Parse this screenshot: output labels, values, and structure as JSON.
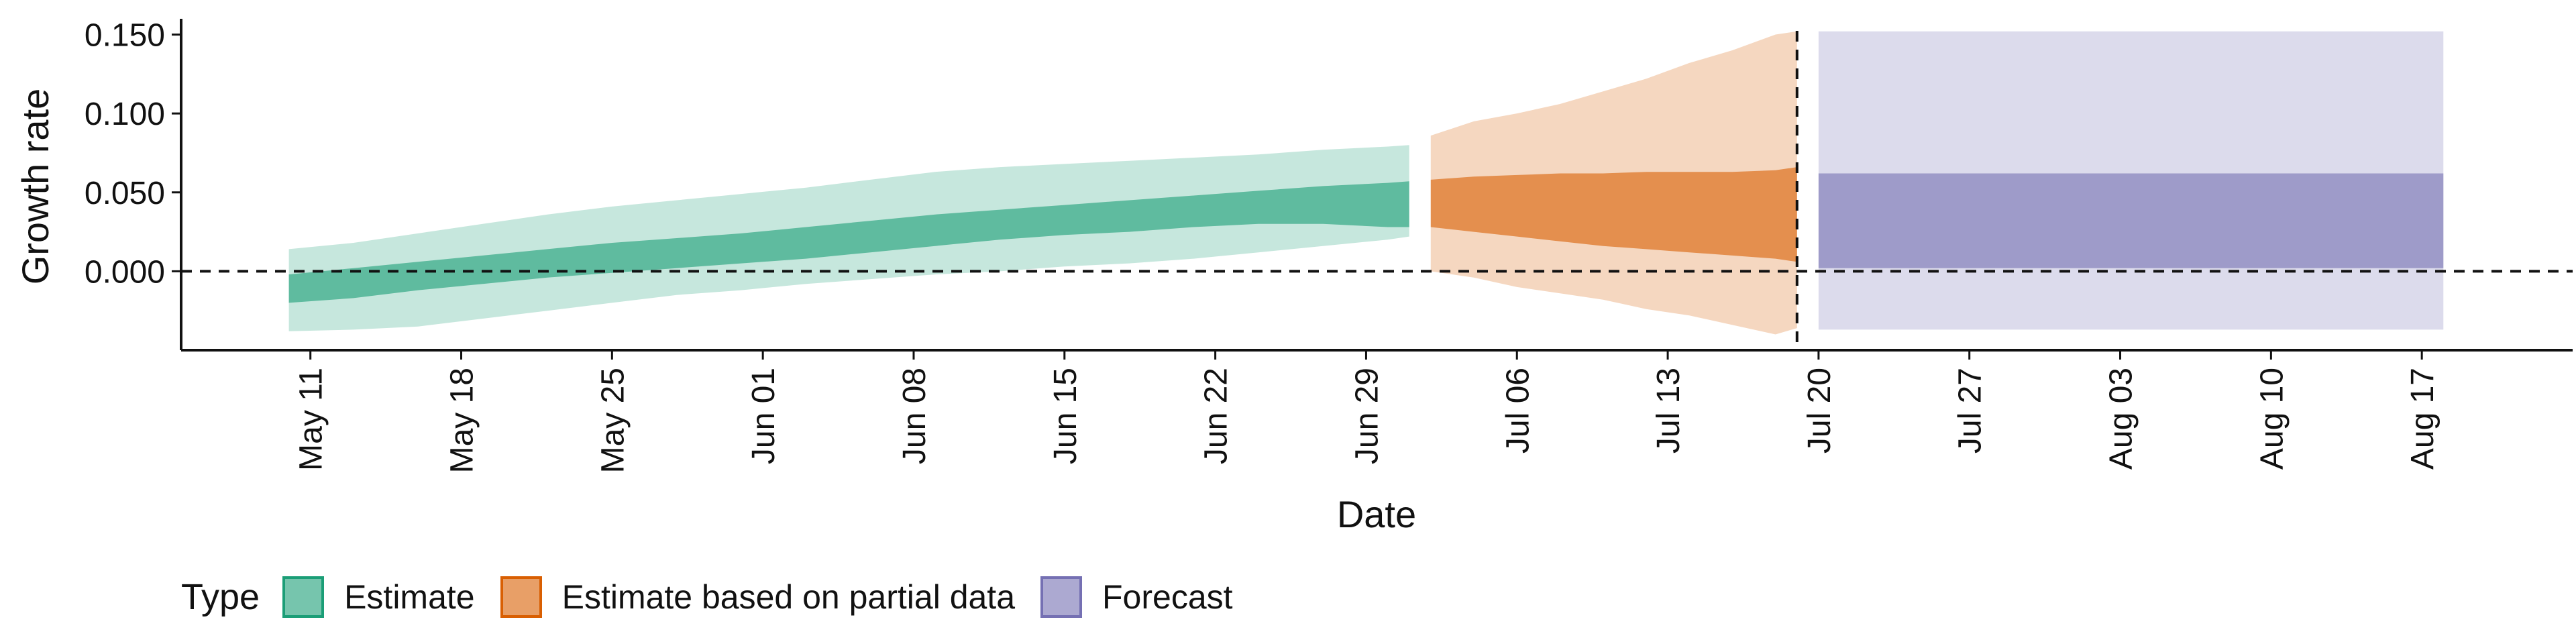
{
  "chart_data": {
    "type": "area",
    "xlabel": "Date",
    "ylabel": "Growth rate",
    "x_ticks": [
      "May 11",
      "May 18",
      "May 25",
      "Jun 01",
      "Jun 08",
      "Jun 15",
      "Jun 22",
      "Jun 29",
      "Jul 06",
      "Jul 13",
      "Jul 20",
      "Jul 27",
      "Aug 03",
      "Aug 10",
      "Aug 17"
    ],
    "x_tick_dates": [
      "2020-05-11",
      "2020-05-18",
      "2020-05-25",
      "2020-06-01",
      "2020-06-08",
      "2020-06-15",
      "2020-06-22",
      "2020-06-29",
      "2020-07-06",
      "2020-07-13",
      "2020-07-20",
      "2020-07-27",
      "2020-08-03",
      "2020-08-10",
      "2020-08-17"
    ],
    "xlim": [
      "2020-05-05",
      "2020-08-24"
    ],
    "y_ticks": [
      "0.000",
      "0.050",
      "0.100",
      "0.150"
    ],
    "ylim": [
      -0.05,
      0.16
    ],
    "reference_lines": {
      "horizontal_y": 0,
      "vertical_date": "2020-07-19",
      "style": "dashed"
    },
    "legend": {
      "title": "Type",
      "placement": "bottom-left"
    },
    "series": [
      {
        "name": "Estimate",
        "color": "#1b9e77",
        "x": [
          "2020-05-10",
          "2020-05-13",
          "2020-05-16",
          "2020-05-19",
          "2020-05-22",
          "2020-05-25",
          "2020-05-28",
          "2020-05-31",
          "2020-06-03",
          "2020-06-06",
          "2020-06-09",
          "2020-06-12",
          "2020-06-15",
          "2020-06-18",
          "2020-06-21",
          "2020-06-24",
          "2020-06-27",
          "2020-06-30",
          "2020-07-01"
        ],
        "lower_90": [
          -0.038,
          -0.037,
          -0.035,
          -0.03,
          -0.025,
          -0.02,
          -0.015,
          -0.012,
          -0.008,
          -0.005,
          -0.002,
          0.0,
          0.003,
          0.005,
          0.008,
          0.012,
          0.016,
          0.02,
          0.022
        ],
        "lower_50": [
          -0.02,
          -0.017,
          -0.012,
          -0.008,
          -0.004,
          -0.001,
          0.002,
          0.005,
          0.008,
          0.012,
          0.016,
          0.02,
          0.023,
          0.025,
          0.028,
          0.03,
          0.03,
          0.028,
          0.028
        ],
        "upper_50": [
          -0.002,
          0.002,
          0.006,
          0.01,
          0.014,
          0.018,
          0.021,
          0.024,
          0.028,
          0.032,
          0.036,
          0.039,
          0.042,
          0.045,
          0.048,
          0.051,
          0.054,
          0.056,
          0.057
        ],
        "upper_90": [
          0.014,
          0.018,
          0.024,
          0.03,
          0.036,
          0.041,
          0.045,
          0.049,
          0.053,
          0.058,
          0.063,
          0.066,
          0.068,
          0.07,
          0.072,
          0.074,
          0.077,
          0.079,
          0.08
        ]
      },
      {
        "name": "Estimate based on partial data",
        "color": "#d95f02",
        "x": [
          "2020-07-02",
          "2020-07-04",
          "2020-07-06",
          "2020-07-08",
          "2020-07-10",
          "2020-07-12",
          "2020-07-14",
          "2020-07-16",
          "2020-07-18",
          "2020-07-19"
        ],
        "lower_90": [
          0.0,
          -0.004,
          -0.01,
          -0.014,
          -0.018,
          -0.024,
          -0.028,
          -0.034,
          -0.04,
          -0.036
        ],
        "lower_50": [
          0.028,
          0.025,
          0.022,
          0.019,
          0.016,
          0.014,
          0.012,
          0.01,
          0.008,
          0.006
        ],
        "upper_50": [
          0.058,
          0.06,
          0.061,
          0.062,
          0.062,
          0.063,
          0.063,
          0.063,
          0.064,
          0.066
        ],
        "upper_90": [
          0.086,
          0.095,
          0.1,
          0.106,
          0.114,
          0.122,
          0.132,
          0.14,
          0.15,
          0.152
        ]
      },
      {
        "name": "Forecast",
        "color": "#7570b3",
        "x": [
          "2020-07-20",
          "2020-08-18"
        ],
        "lower_90": [
          -0.037,
          -0.037
        ],
        "lower_50": [
          0.002,
          0.002
        ],
        "upper_50": [
          0.062,
          0.062
        ],
        "upper_90": [
          0.152,
          0.152
        ]
      }
    ]
  }
}
